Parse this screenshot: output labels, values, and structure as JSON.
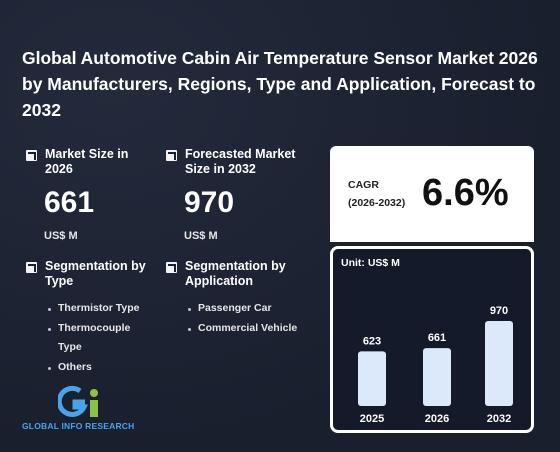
{
  "title": "Global Automotive Cabin Air Temperature Sensor Market 2026 by Manufacturers, Regions, Type and Application, Forecast to 2032",
  "market_size": {
    "label": "Market Size in 2026",
    "value": "661",
    "unit": "US$ M"
  },
  "forecast_size": {
    "label": "Forecasted Market Size in 2032",
    "value": "970",
    "unit": "US$ M"
  },
  "segmentation_type": {
    "label": "Segmentation by Type",
    "items": [
      "Thermistor Type",
      "Thermocouple Type",
      "Others"
    ]
  },
  "segmentation_application": {
    "label": "Segmentation by Application",
    "items": [
      "Passenger Car",
      "Commercial Vehicle"
    ]
  },
  "cagr": {
    "label_line1": "CAGR",
    "label_line2": "(2026-2032)",
    "value": "6.6%"
  },
  "logo": {
    "text": "GLOBAL INFO RESEARCH"
  },
  "colors": {
    "background": "#1a1f2e",
    "bar": "#dce9fb",
    "logo_blue": "#4aa3e8",
    "logo_green": "#8bc34a"
  },
  "chart_data": {
    "type": "bar",
    "unit_label": "Unit: US$ M",
    "categories": [
      "2025",
      "2026",
      "2032"
    ],
    "values": [
      623,
      661,
      970
    ]
  }
}
